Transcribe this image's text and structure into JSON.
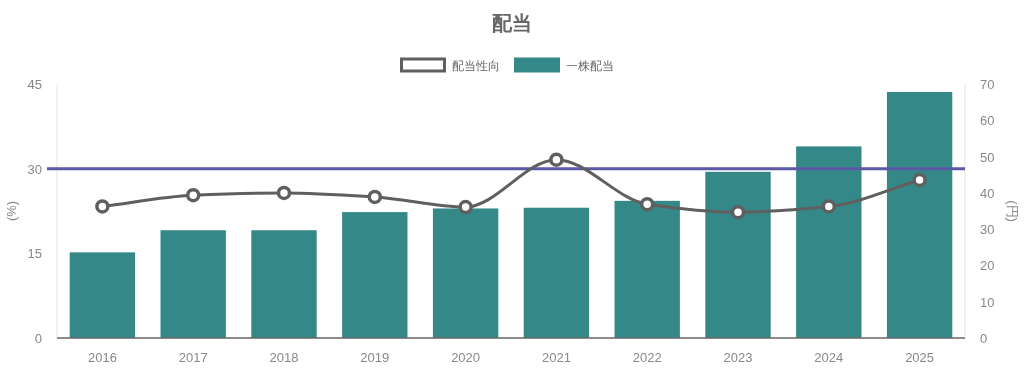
{
  "chart_data": {
    "type": "bar",
    "title": "配当",
    "ylabel": "(%)",
    "y2label": "(円)",
    "categories": [
      "2016",
      "2017",
      "2018",
      "2019",
      "2020",
      "2021",
      "2022",
      "2023",
      "2024",
      "2025"
    ],
    "series": [
      {
        "name": "配当性向",
        "type": "line",
        "color": "#5f5f5f",
        "values": [
          23.3,
          25.3,
          25.7,
          25.0,
          23.2,
          31.6,
          23.7,
          22.3,
          23.3,
          28.0
        ]
      },
      {
        "name": "一株配当",
        "axis": "y2",
        "color": "#348888",
        "values": [
          23.6,
          29.7,
          29.7,
          34.7,
          35.7,
          35.9,
          37.8,
          45.8,
          52.8,
          67.8
        ]
      }
    ],
    "ylim": [
      0,
      45
    ],
    "yticks": [
      0,
      15,
      30,
      45
    ],
    "y2lim": [
      0,
      70
    ],
    "y2ticks": [
      0,
      10,
      20,
      30,
      40,
      50,
      60,
      70
    ],
    "ref_lines": [
      {
        "axis": "y",
        "value": 30,
        "color": "#5b58a6"
      }
    ],
    "marker": "circle",
    "line_style": "solid",
    "grid": false,
    "legend": "top"
  }
}
